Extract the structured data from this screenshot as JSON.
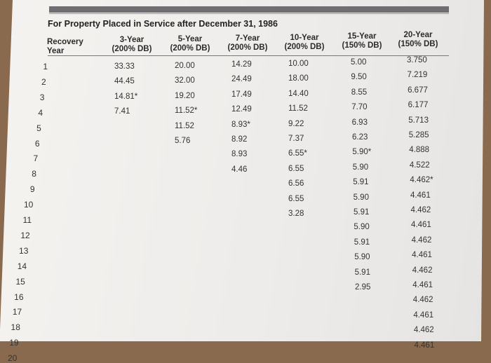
{
  "title": "For Property Placed in Service after December 31, 1986",
  "headers": [
    {
      "top": "Recovery",
      "bottom": "Year"
    },
    {
      "top": "3-Year",
      "bottom": "(200% DB)"
    },
    {
      "top": "5-Year",
      "bottom": "(200% DB)"
    },
    {
      "top": "7-Year",
      "bottom": "(200% DB)"
    },
    {
      "top": "10-Year",
      "bottom": "(200% DB)"
    },
    {
      "top": "15-Year",
      "bottom": "(150% DB)"
    },
    {
      "top": "20-Year",
      "bottom": "(150% DB)"
    }
  ],
  "row_numbers": [
    "1",
    "2",
    "3",
    "4",
    "5",
    "6",
    "7",
    "8",
    "9",
    "10",
    "11",
    "12",
    "13",
    "14",
    "15",
    "16",
    "17",
    "18",
    "19",
    "20"
  ],
  "columns": {
    "3yr": [
      "33.33",
      "44.45",
      "14.81*",
      "7.41"
    ],
    "5yr": [
      "20.00",
      "32.00",
      "19.20",
      "11.52*",
      "11.52",
      "5.76"
    ],
    "7yr": [
      "14.29",
      "24.49",
      "17.49",
      "12.49",
      "8.93*",
      "8.92",
      "8.93",
      "4.46"
    ],
    "10yr": [
      "10.00",
      "18.00",
      "14.40",
      "11.52",
      "9.22",
      "7.37",
      "6.55*",
      "6.55",
      "6.56",
      "6.55",
      "3.28"
    ],
    "15yr": [
      "5.00",
      "9.50",
      "8.55",
      "7.70",
      "6.93",
      "6.23",
      "5.90*",
      "5.90",
      "5.91",
      "5.90",
      "5.91",
      "5.90",
      "5.91",
      "5.90",
      "5.91",
      "2.95"
    ],
    "20yr": [
      "3.750",
      "7.219",
      "6.677",
      "6.177",
      "5.713",
      "5.285",
      "4.888",
      "4.522",
      "4.462*",
      "4.461",
      "4.462",
      "4.461",
      "4.462",
      "4.461",
      "4.462",
      "4.461",
      "4.462",
      "4.461",
      "4.462",
      "4.461"
    ]
  }
}
